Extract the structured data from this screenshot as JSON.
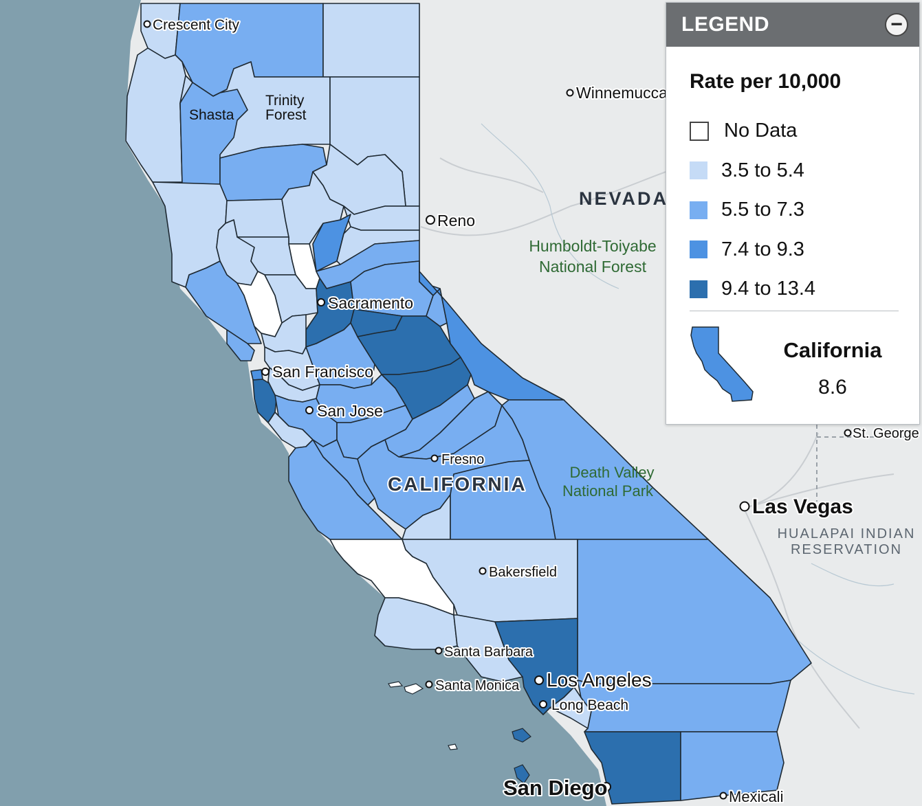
{
  "colors": {
    "ocean": "#819fad",
    "land": "#e9ebec",
    "no_data": "#ffffff",
    "bin1": "#c5dbf6",
    "bin2": "#78aef1",
    "bin3": "#4d92e2",
    "bin4": "#2c6fae"
  },
  "legend": {
    "title": "LEGEND",
    "collapse_glyph": "−",
    "subtitle": "Rate per 10,000",
    "items": [
      {
        "label": "No Data",
        "color": "#ffffff"
      },
      {
        "label": "3.5 to 5.4",
        "color": "#c5dbf6"
      },
      {
        "label": "5.5 to 7.3",
        "color": "#78aef1"
      },
      {
        "label": "7.4 to 9.3",
        "color": "#4d92e2"
      },
      {
        "label": "9.4 to 13.4",
        "color": "#2c6fae"
      }
    ],
    "summary": {
      "name": "California",
      "value": "8.6"
    }
  },
  "labels": {
    "crescent_city": "Crescent City",
    "shasta": "Shasta",
    "trinity_forest_1": "Trinity",
    "trinity_forest_2": "Forest",
    "winnemucca": "Winnemucca",
    "nevada": "NEVADA",
    "reno": "Reno",
    "humboldt_1": "Humboldt-Toiyabe",
    "humboldt_2": "National Forest",
    "sacramento": "Sacramento",
    "san_francisco": "San Francisco",
    "san_jose": "San Jose",
    "fresno": "Fresno",
    "california": "CALIFORNIA",
    "death_valley_1": "Death Valley",
    "death_valley_2": "National Park",
    "st_george": "St. George",
    "las_vegas": "Las Vegas",
    "hualapai_1": "HUALAPAI INDIAN",
    "hualapai_2": "RESERVATION",
    "bakersfield": "Bakersfield",
    "santa_barbara": "Santa Barbara",
    "santa_monica": "Santa Monica",
    "los_angeles": "Los Angeles",
    "long_beach": "Long Beach",
    "san_diego": "San Diego",
    "mexicali": "Mexicali"
  }
}
